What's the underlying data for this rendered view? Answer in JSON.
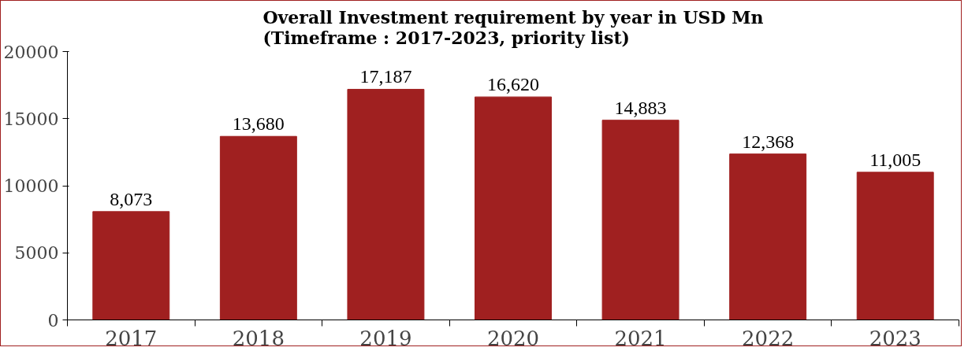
{
  "chart_data": {
    "type": "bar",
    "title": "Overall Investment requirement by year in USD Mn\n(Timeframe : 2017-2023, priority list)",
    "categories": [
      "2017",
      "2018",
      "2019",
      "2020",
      "2021",
      "2022",
      "2023"
    ],
    "values": [
      8073,
      13680,
      17187,
      16620,
      14883,
      12368,
      11005
    ],
    "value_labels": [
      "8,073",
      "13,680",
      "17,187",
      "16,620",
      "14,883",
      "12,368",
      "11,005"
    ],
    "color": "#a02020",
    "ylim": [
      0,
      20000
    ],
    "yticks": [
      0,
      5000,
      10000,
      15000,
      20000
    ],
    "grid": false
  }
}
